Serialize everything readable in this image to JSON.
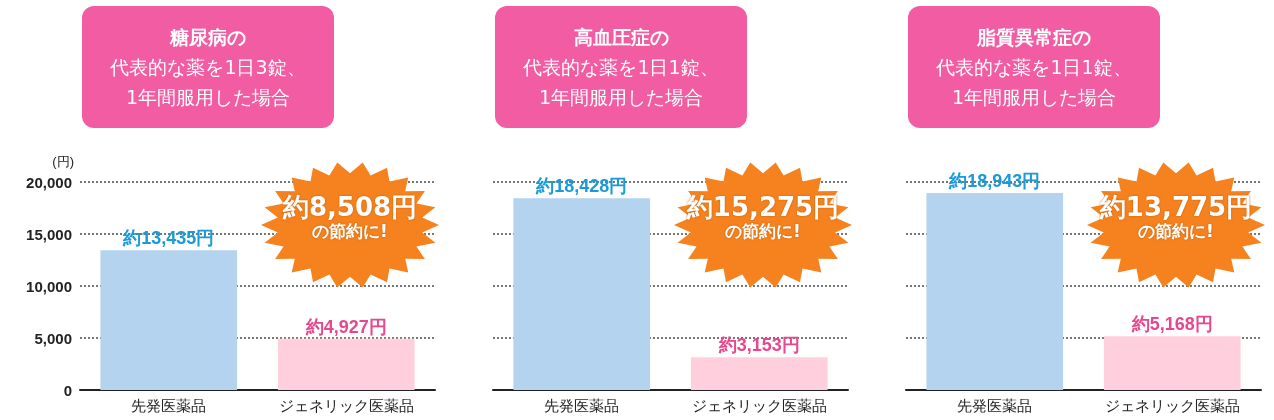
{
  "chart_data": [
    {
      "type": "bar",
      "title": "糖尿病の",
      "subtitle": "代表的な薬を1日3錠、1年間服用した場合",
      "ylabel": "(円)",
      "categories": [
        "先発医薬品",
        "ジェネリック医薬品"
      ],
      "values": [
        13435,
        4927
      ],
      "colors": [
        "#b3d3ee",
        "#ffcfdd"
      ],
      "value_labels": [
        "約13,435円",
        "約4,927円"
      ],
      "ylim": [
        0,
        20000
      ],
      "yticks": [
        0,
        {
          "value": 5000,
          "label": "5,000"
        },
        {
          "value": 10000,
          "label": "10,000"
        },
        {
          "value": 15000,
          "label": "15,000"
        },
        {
          "value": 20000,
          "label": "20,000"
        }
      ],
      "grid": "y",
      "annotations": [
        "約8,508円",
        "の節約に!"
      ]
    },
    {
      "type": "bar",
      "title": "高血圧症の",
      "subtitle": "代表的な薬を1日1錠、1年間服用した場合",
      "categories": [
        "先発医薬品",
        "ジェネリック医薬品"
      ],
      "values": [
        18428,
        3153
      ],
      "colors": [
        "#b3d3ee",
        "#ffcfdd"
      ],
      "value_labels": [
        "約18,428円",
        "約3,153円"
      ],
      "ylim": [
        0,
        20000
      ],
      "yticks": [
        0,
        5000,
        10000,
        15000,
        20000
      ],
      "grid": "y",
      "tick_labels": "x",
      "annotations": [
        "約15,275円",
        "の節約に!"
      ]
    },
    {
      "type": "bar",
      "title": "脂質異常症の",
      "subtitle": "代表的な薬を1日1錠、1年間服用した場合",
      "categories": [
        "先発医薬品",
        "ジェネリック医薬品"
      ],
      "values": [
        18943,
        5168
      ],
      "colors": [
        "#b3d3ee",
        "#ffcfdd"
      ],
      "value_labels": [
        "約18,943円",
        "約5,168円"
      ],
      "ylim": [
        0,
        20000
      ],
      "yticks": [
        0,
        5000,
        10000,
        15000,
        20000
      ],
      "grid": "y",
      "tick_labels": "x",
      "annotations": [
        "約13,775円",
        "の節約に!"
      ]
    }
  ]
}
